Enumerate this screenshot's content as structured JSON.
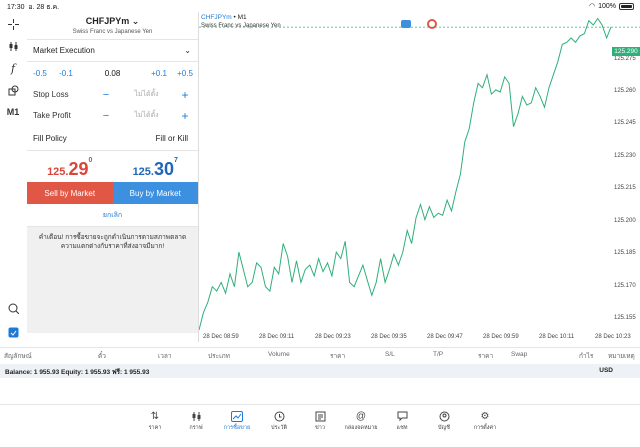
{
  "status_bar": {
    "time": "17:30",
    "date": "อ. 28 ธ.ค.",
    "battery": "100%"
  },
  "left_toolbar": {
    "timeframe": "M1"
  },
  "order": {
    "symbol": "CHFJPYm",
    "description": "Swiss Franc vs Japanese Yen",
    "execution": "Market Execution",
    "volume_steps": [
      "-0.5",
      "-0.1",
      "+0.1",
      "+0.5"
    ],
    "volume": "0.08",
    "stop_loss_label": "Stop Loss",
    "take_profit_label": "Take Profit",
    "not_set": "ไม่ได้ตั้ง",
    "fill_policy_label": "Fill Policy",
    "fill_policy_value": "Fill or Kill",
    "bid": {
      "small": "125.",
      "big": "29",
      "sup": "0"
    },
    "ask": {
      "small": "125.",
      "big": "30",
      "sup": "7"
    },
    "sell_label": "Sell by Market",
    "buy_label": "Buy by Market",
    "cancel_label": "ยกเลิก",
    "warning": "คำเตือน! การซื้อขายจะถูกดำเนินการตามสภาพตลาด ความแตกต่างกับราคาที่ส่งอาจมีมาก!"
  },
  "chart": {
    "title_symbol": "CHFJPYm",
    "title_tf": "M1",
    "subtitle": "Swiss Franc vs Japanese Yen",
    "current_price": "125.290",
    "colors": {
      "line": "#2faf7a",
      "bid_tag": "#2faf7a",
      "chip1": "#e05746",
      "chip2": "#3d8fe0"
    }
  },
  "chart_data": {
    "type": "line",
    "title": "CHFJPYm • M1",
    "y_ticks": [
      "125.275",
      "125.260",
      "125.245",
      "125.230",
      "125.215",
      "125.200",
      "125.185",
      "125.170",
      "125.155"
    ],
    "x_ticks": [
      "28 Dec 08:59",
      "28 Dec 09:11",
      "28 Dec 09:23",
      "28 Dec 09:35",
      "28 Dec 09:47",
      "28 Dec 09:59",
      "28 Dec 10:11",
      "28 Dec 10:23"
    ],
    "ylim": [
      125.15,
      125.297
    ],
    "values": [
      125.15,
      125.158,
      125.163,
      125.17,
      125.168,
      125.172,
      125.167,
      125.176,
      125.17,
      125.186,
      125.178,
      125.17,
      125.172,
      125.181,
      125.179,
      125.17,
      125.168,
      125.179,
      125.176,
      125.19,
      125.184,
      125.172,
      125.182,
      125.172,
      125.178,
      125.18,
      125.175,
      125.183,
      125.177,
      125.181,
      125.175,
      125.186,
      125.183,
      125.191,
      125.172,
      125.17,
      125.175,
      125.18,
      125.173,
      125.166,
      125.172,
      125.183,
      125.172,
      125.178,
      125.185,
      125.18,
      125.186,
      125.196,
      125.19,
      125.202,
      125.208,
      125.201,
      125.207,
      125.202,
      125.204,
      125.203,
      125.21,
      125.205,
      125.214,
      125.222,
      125.237,
      125.243,
      125.255,
      125.264,
      125.262,
      125.268,
      125.259,
      125.261,
      125.26,
      125.267,
      125.264,
      125.244,
      125.25,
      125.258,
      125.254,
      125.255,
      125.262,
      125.258,
      125.253,
      125.262,
      125.268,
      125.274,
      125.282,
      125.283,
      125.285,
      125.283,
      125.286,
      125.287,
      125.293,
      125.291,
      125.294,
      125.291,
      125.285,
      125.29
    ]
  },
  "table": {
    "columns": [
      "สัญลักษณ์",
      "ตั๋ว",
      "เวลา",
      "ประเภท",
      "Volume",
      "ราคา",
      "S/L",
      "T/P",
      "ราคา",
      "Swap",
      "กำไร",
      "หมายเหตุ"
    ]
  },
  "balance": {
    "text": "Balance: 1 955.93 Equity: 1 955.93 ฟรี: 1 955.93",
    "currency": "USD"
  },
  "tabs": [
    {
      "label": "ราคา",
      "icon": "sort-arrows-icon"
    },
    {
      "label": "กราฟ",
      "icon": "candles-icon"
    },
    {
      "label": "การซื้อขาย",
      "icon": "trade-chart-icon",
      "active": true
    },
    {
      "label": "ประวัติ",
      "icon": "history-icon"
    },
    {
      "label": "ข่าว",
      "icon": "news-icon"
    },
    {
      "label": "กล่องจดหมาย",
      "icon": "mailbox-icon"
    },
    {
      "label": "แชท",
      "icon": "chat-icon"
    },
    {
      "label": "บัญชี",
      "icon": "account-icon"
    },
    {
      "label": "การตั้งค่า",
      "icon": "settings-icon"
    }
  ]
}
